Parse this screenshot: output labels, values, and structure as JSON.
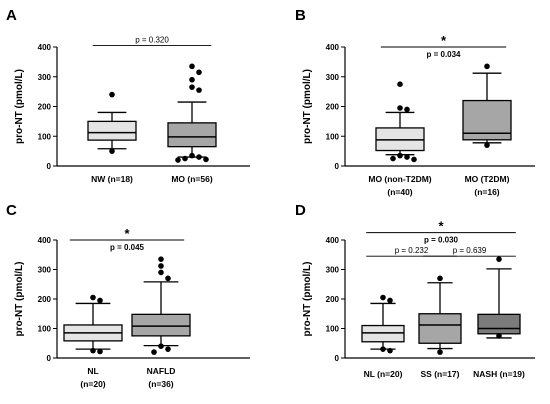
{
  "chart_data": [
    {
      "type": "box",
      "panel": "A",
      "ylabel": "pro-NT (pmol/L)",
      "ylim": [
        0,
        400
      ],
      "yticks": [
        "0",
        "100",
        "200",
        "300",
        "400"
      ],
      "groups": [
        {
          "label": "NW (n=18)",
          "label_line2": "",
          "fill": "#e4e4e4",
          "whisker_low": 58,
          "q1": 87,
          "median": 112,
          "q3": 150,
          "whisker_high": 180,
          "outliers": [
            240,
            50
          ]
        },
        {
          "label": "MO (n=56)",
          "label_line2": "",
          "fill": "#a6a6a6",
          "whisker_low": 30,
          "q1": 65,
          "median": 98,
          "q3": 145,
          "whisker_high": 215,
          "outliers": [
            335,
            315,
            290,
            265,
            255,
            35,
            30,
            25,
            22,
            20
          ]
        }
      ],
      "comparisons": [
        {
          "from": 0,
          "to": 1,
          "text": "p = 0.320",
          "star": "",
          "bold": false,
          "y": 405
        }
      ]
    },
    {
      "type": "box",
      "panel": "B",
      "ylabel": "pro-NT (pmol/L)",
      "ylim": [
        0,
        400
      ],
      "yticks": [
        "0",
        "100",
        "200",
        "300",
        "400"
      ],
      "groups": [
        {
          "label": "MO (non-T2DM)",
          "label_line2": "(n=40)",
          "fill": "#e4e4e4",
          "whisker_low": 38,
          "q1": 52,
          "median": 88,
          "q3": 128,
          "whisker_high": 180,
          "outliers": [
            275,
            195,
            190,
            35,
            30,
            25,
            22
          ]
        },
        {
          "label": "MO (T2DM)",
          "label_line2": "(n=16)",
          "fill": "#a6a6a6",
          "whisker_low": 78,
          "q1": 88,
          "median": 110,
          "q3": 220,
          "whisker_high": 312,
          "outliers": [
            335,
            70
          ]
        }
      ],
      "comparisons": [
        {
          "from": 0,
          "to": 1,
          "text": "p = 0.034",
          "star": "*",
          "bold": true,
          "y": 400
        }
      ]
    },
    {
      "type": "box",
      "panel": "C",
      "ylabel": "pro-NT (pmol/L)",
      "ylim": [
        0,
        400
      ],
      "yticks": [
        "0",
        "100",
        "200",
        "300",
        "400"
      ],
      "groups": [
        {
          "label": "NL",
          "label_line2": "(n=20)",
          "fill": "#e4e4e4",
          "whisker_low": 30,
          "q1": 58,
          "median": 85,
          "q3": 112,
          "whisker_high": 185,
          "outliers": [
            205,
            195,
            25,
            22
          ]
        },
        {
          "label": "NAFLD",
          "label_line2": "(n=36)",
          "fill": "#a6a6a6",
          "whisker_low": 42,
          "q1": 75,
          "median": 108,
          "q3": 148,
          "whisker_high": 258,
          "outliers": [
            335,
            312,
            290,
            270,
            40,
            30,
            20
          ]
        }
      ],
      "comparisons": [
        {
          "from": 0,
          "to": 1,
          "text": "p = 0.045",
          "star": "*",
          "bold": true,
          "y": 400
        }
      ]
    },
    {
      "type": "box",
      "panel": "D",
      "ylabel": "pro-NT (pmol/L)",
      "ylim": [
        0,
        400
      ],
      "yticks": [
        "0",
        "100",
        "200",
        "300",
        "400"
      ],
      "groups": [
        {
          "label": "NL (n=20)",
          "label_line2": "",
          "fill": "#e4e4e4",
          "whisker_low": 30,
          "q1": 55,
          "median": 85,
          "q3": 110,
          "whisker_high": 185,
          "outliers": [
            205,
            195,
            30,
            25
          ]
        },
        {
          "label": "SS (n=17)",
          "label_line2": "",
          "fill": "#a6a6a6",
          "whisker_low": 32,
          "q1": 50,
          "median": 112,
          "q3": 150,
          "whisker_high": 255,
          "outliers": [
            270,
            20
          ]
        },
        {
          "label": "NASH (n=19)",
          "label_line2": "",
          "fill": "#7b7b7b",
          "whisker_low": 68,
          "q1": 82,
          "median": 100,
          "q3": 148,
          "whisker_high": 302,
          "outliers": [
            335,
            75
          ]
        }
      ],
      "comparisons": [
        {
          "from": 0,
          "to": 2,
          "text": "p = 0.030",
          "star": "*",
          "bold": true,
          "y": 425
        },
        {
          "from": 0,
          "to": 1,
          "text": "p = 0.232",
          "star": "",
          "bold": false,
          "y": 345
        },
        {
          "from": 1,
          "to": 2,
          "text": "p = 0.639",
          "star": "",
          "bold": false,
          "y": 345
        }
      ]
    }
  ]
}
